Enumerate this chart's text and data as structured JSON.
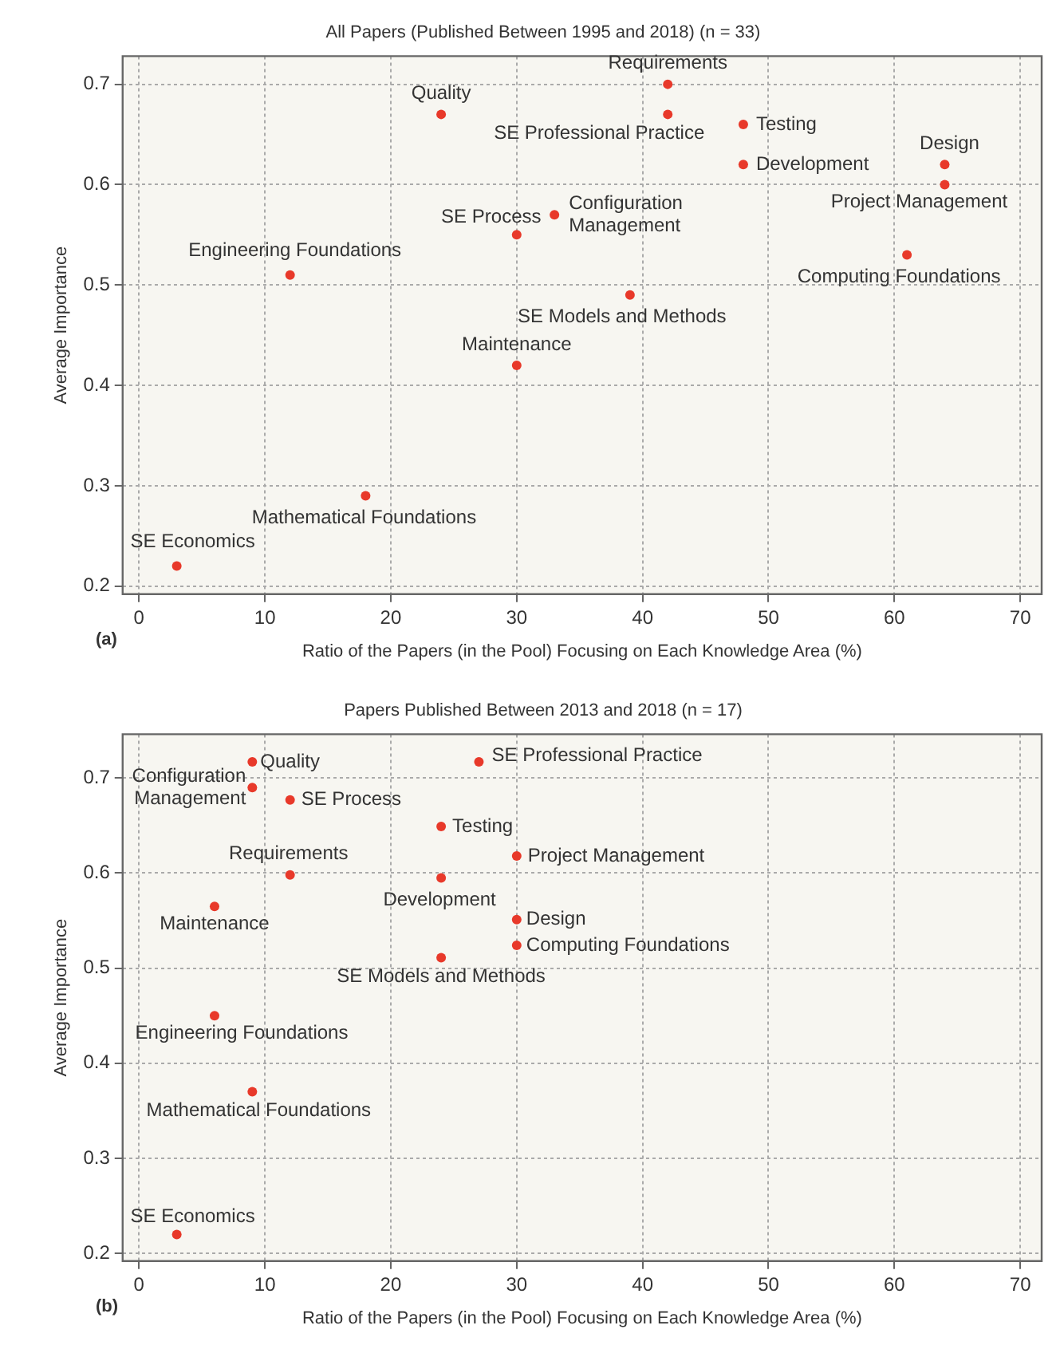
{
  "chart_data": [
    {
      "type": "scatter",
      "title": "All Papers (Published Between 1995 and 2018) (n = 33)",
      "xlabel": "Ratio of the Papers (in the Pool) Focusing on Each Knowledge Area (%)",
      "ylabel": "Average Importance",
      "xlim": [
        -1.3,
        71.7
      ],
      "ylim": [
        0.192,
        0.728
      ],
      "xticks": [
        0,
        10,
        20,
        30,
        40,
        50,
        60,
        70
      ],
      "yticks": [
        0.2,
        0.3,
        0.4,
        0.5,
        0.6,
        0.7
      ],
      "grid": true,
      "marker": "circle",
      "legend": false,
      "series": [
        {
          "color": "#e8392a",
          "x": [
            42,
            24,
            42,
            48,
            48,
            64,
            64,
            33,
            30,
            61,
            12,
            39,
            30,
            18,
            3
          ],
          "values": [
            0.7,
            0.67,
            0.67,
            0.66,
            0.62,
            0.62,
            0.6,
            0.57,
            0.55,
            0.53,
            0.51,
            0.49,
            0.42,
            0.29,
            0.22
          ]
        }
      ],
      "annotations": [
        {
          "text": "Requirements",
          "x": 42,
          "y": 0.7
        },
        {
          "text": "Quality",
          "x": 24,
          "y": 0.67
        },
        {
          "text": "SE Professional Practice",
          "x": 42,
          "y": 0.67
        },
        {
          "text": "Testing",
          "x": 48,
          "y": 0.66
        },
        {
          "text": "Development",
          "x": 48,
          "y": 0.62
        },
        {
          "text": "Design",
          "x": 64,
          "y": 0.62
        },
        {
          "text": "Project Management",
          "x": 64,
          "y": 0.6
        },
        {
          "text": "Configuration Management",
          "x": 33,
          "y": 0.57
        },
        {
          "text": "SE Process",
          "x": 30,
          "y": 0.55
        },
        {
          "text": "Computing Foundations",
          "x": 61,
          "y": 0.53
        },
        {
          "text": "Engineering Foundations",
          "x": 12,
          "y": 0.51
        },
        {
          "text": "SE Models and Methods",
          "x": 39,
          "y": 0.49
        },
        {
          "text": "Maintenance",
          "x": 30,
          "y": 0.42
        },
        {
          "text": "Mathematical Foundations",
          "x": 18,
          "y": 0.29
        },
        {
          "text": "SE Economics",
          "x": 3,
          "y": 0.22
        },
        "(a)"
      ]
    },
    {
      "type": "scatter",
      "title": "Papers Published Between 2013 and 2018 (n = 17)",
      "xlabel": "Ratio of the Papers (in the Pool) Focusing on Each Knowledge Area (%)",
      "ylabel": "Average Importance",
      "xlim": [
        -1.3,
        71.7
      ],
      "ylim": [
        0.192,
        0.746
      ],
      "xticks": [
        0,
        10,
        20,
        30,
        40,
        50,
        60,
        70
      ],
      "yticks": [
        0.2,
        0.3,
        0.4,
        0.5,
        0.6,
        0.7
      ],
      "grid": true,
      "marker": "circle",
      "legend": false,
      "series": [
        {
          "color": "#e8392a",
          "x": [
            9,
            27,
            9,
            12,
            24,
            30,
            12,
            24,
            6,
            30,
            30,
            24,
            6,
            9,
            3
          ],
          "values": [
            0.717,
            0.717,
            0.69,
            0.677,
            0.649,
            0.618,
            0.598,
            0.595,
            0.565,
            0.551,
            0.524,
            0.511,
            0.45,
            0.37,
            0.22
          ]
        }
      ],
      "annotations": [
        {
          "text": "Quality",
          "x": 9,
          "y": 0.717
        },
        {
          "text": "SE Professional Practice",
          "x": 27,
          "y": 0.717
        },
        {
          "text": "Configuration Management",
          "x": 9,
          "y": 0.69
        },
        {
          "text": "SE Process",
          "x": 12,
          "y": 0.677
        },
        {
          "text": "Testing",
          "x": 24,
          "y": 0.649
        },
        {
          "text": "Project Management",
          "x": 30,
          "y": 0.618
        },
        {
          "text": "Requirements",
          "x": 12,
          "y": 0.598
        },
        {
          "text": "Development",
          "x": 24,
          "y": 0.595
        },
        {
          "text": "Maintenance",
          "x": 6,
          "y": 0.565
        },
        {
          "text": "Design",
          "x": 30,
          "y": 0.551
        },
        {
          "text": "Computing Foundations",
          "x": 30,
          "y": 0.524
        },
        {
          "text": "SE Models and Methods",
          "x": 24,
          "y": 0.511
        },
        {
          "text": "Engineering Foundations",
          "x": 6,
          "y": 0.45
        },
        {
          "text": "Mathematical Foundations",
          "x": 9,
          "y": 0.37
        },
        {
          "text": "SE Economics",
          "x": 3,
          "y": 0.22
        },
        "(b)"
      ]
    }
  ]
}
